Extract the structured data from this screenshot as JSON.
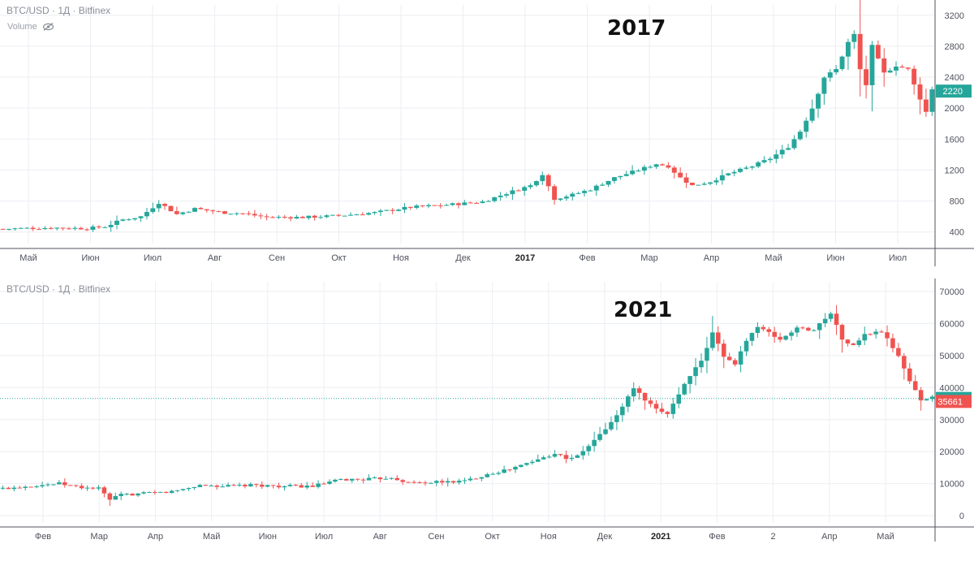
{
  "colors": {
    "up": "#26a69a",
    "down": "#ef5350",
    "grid": "#eceef2",
    "axis": "#50535e",
    "text": "#50535e",
    "bg": "#ffffff"
  },
  "icons": {
    "volume_visibility": "eye-slash-icon"
  },
  "chart_data": [
    {
      "type": "candlestick",
      "symbol_header": "BTC/USD · 1Д · Bitfinex",
      "indicator_label": "Volume",
      "title": "2017",
      "y_scale": "linear",
      "ylim": [
        250,
        3250
      ],
      "yticks": [
        400,
        800,
        1200,
        1600,
        2000,
        2400,
        2800,
        3200
      ],
      "x_ticks": [
        "Май",
        "Июн",
        "Июл",
        "Авг",
        "Сен",
        "Окт",
        "Ноя",
        "Дек",
        "2017",
        "Фев",
        "Мар",
        "Апр",
        "Май",
        "Июн",
        "Июл"
      ],
      "grid": true,
      "last_price": 2220,
      "last_price_color": "#26a69a",
      "price_anchors": [
        [
          0,
          440
        ],
        [
          8,
          455
        ],
        [
          14,
          445
        ],
        [
          17,
          470
        ],
        [
          20,
          560
        ],
        [
          23,
          600
        ],
        [
          26,
          780
        ],
        [
          29,
          630
        ],
        [
          32,
          700
        ],
        [
          37,
          650
        ],
        [
          40,
          640
        ],
        [
          44,
          590
        ],
        [
          50,
          590
        ],
        [
          56,
          610
        ],
        [
          62,
          650
        ],
        [
          68,
          720
        ],
        [
          74,
          750
        ],
        [
          80,
          790
        ],
        [
          84,
          900
        ],
        [
          88,
          1000
        ],
        [
          90,
          1150
        ],
        [
          92,
          830
        ],
        [
          95,
          880
        ],
        [
          98,
          950
        ],
        [
          102,
          1100
        ],
        [
          106,
          1200
        ],
        [
          109,
          1280
        ],
        [
          111,
          1250
        ],
        [
          113,
          1100
        ],
        [
          115,
          1000
        ],
        [
          118,
          1050
        ],
        [
          121,
          1150
        ],
        [
          125,
          1250
        ],
        [
          128,
          1350
        ],
        [
          131,
          1500
        ],
        [
          133,
          1700
        ],
        [
          135,
          2000
        ],
        [
          137,
          2400
        ],
        [
          139,
          2500
        ],
        [
          141,
          2850
        ],
        [
          142,
          2950
        ],
        [
          143,
          2500
        ],
        [
          144,
          2300
        ],
        [
          145,
          2800
        ],
        [
          147,
          2450
        ],
        [
          149,
          2550
        ],
        [
          151,
          2500
        ],
        [
          152,
          2300
        ],
        [
          154,
          1950
        ],
        [
          155,
          2250
        ]
      ]
    },
    {
      "type": "candlestick",
      "symbol_header": "BTC/USD · 1Д · Bitfinex",
      "title": "2021",
      "y_scale": "linear",
      "ylim": [
        -2000,
        71000
      ],
      "yticks": [
        0,
        10000,
        20000,
        30000,
        40000,
        50000,
        60000,
        70000
      ],
      "x_ticks": [
        "Фев",
        "Мар",
        "Апр",
        "Май",
        "Июн",
        "Июл",
        "Авг",
        "Сен",
        "Окт",
        "Ноя",
        "Дек",
        "2021",
        "Фев",
        "2",
        "Апр",
        "Май"
      ],
      "grid": true,
      "crosshair_value": 36605,
      "crosshair_color": "#26a69a",
      "last_price": 35661,
      "last_price_color": "#ef5350",
      "price_anchors": [
        [
          0,
          8500
        ],
        [
          6,
          9500
        ],
        [
          10,
          10000
        ],
        [
          14,
          8800
        ],
        [
          17,
          8500
        ],
        [
          19,
          5000
        ],
        [
          21,
          6500
        ],
        [
          26,
          7000
        ],
        [
          30,
          7500
        ],
        [
          35,
          9500
        ],
        [
          40,
          9200
        ],
        [
          45,
          9500
        ],
        [
          50,
          9200
        ],
        [
          55,
          9200
        ],
        [
          60,
          11200
        ],
        [
          66,
          11500
        ],
        [
          69,
          12000
        ],
        [
          72,
          10300
        ],
        [
          78,
          10500
        ],
        [
          82,
          10800
        ],
        [
          86,
          13000
        ],
        [
          90,
          14500
        ],
        [
          95,
          17500
        ],
        [
          98,
          19500
        ],
        [
          100,
          18000
        ],
        [
          102,
          18500
        ],
        [
          105,
          23500
        ],
        [
          108,
          29000
        ],
        [
          110,
          34000
        ],
        [
          112,
          40000
        ],
        [
          114,
          36000
        ],
        [
          116,
          33000
        ],
        [
          118,
          32000
        ],
        [
          120,
          38000
        ],
        [
          122,
          44000
        ],
        [
          124,
          48000
        ],
        [
          126,
          57000
        ],
        [
          128,
          50000
        ],
        [
          130,
          47000
        ],
        [
          132,
          55000
        ],
        [
          134,
          59000
        ],
        [
          136,
          57000
        ],
        [
          138,
          55000
        ],
        [
          141,
          58500
        ],
        [
          144,
          58000
        ],
        [
          147,
          63500
        ],
        [
          149,
          55000
        ],
        [
          151,
          53000
        ],
        [
          153,
          56500
        ],
        [
          156,
          57500
        ],
        [
          159,
          50000
        ],
        [
          161,
          42000
        ],
        [
          163,
          36000
        ],
        [
          165,
          37500
        ]
      ]
    }
  ]
}
